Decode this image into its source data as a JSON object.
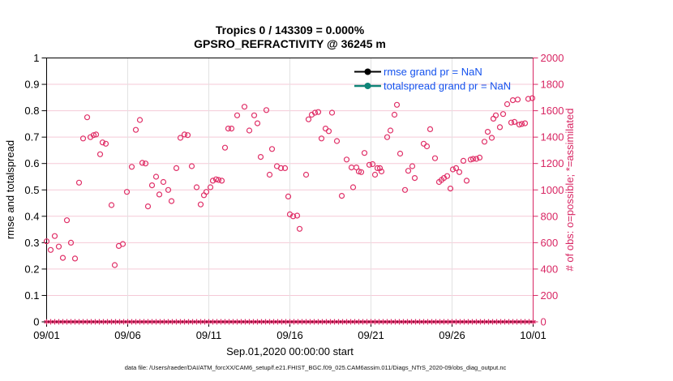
{
  "title": {
    "line1": "Tropics 0 / 143309 = 0.000%",
    "line2": "GPSRO_REFRACTIVITY @ 36245 m"
  },
  "axes": {
    "left": {
      "label": "rmse and totalspread",
      "ticks": [
        "0",
        "0.1",
        "0.2",
        "0.3",
        "0.4",
        "0.5",
        "0.6",
        "0.7",
        "0.8",
        "0.9",
        "1"
      ],
      "range": [
        0,
        1
      ]
    },
    "right": {
      "label": "# of obs: o=possible; *=assimilated",
      "ticks": [
        "0",
        "200",
        "400",
        "600",
        "800",
        "1000",
        "1200",
        "1400",
        "1600",
        "1800",
        "2000"
      ],
      "range": [
        0,
        2000
      ]
    },
    "x": {
      "label": "Sep.01,2020 00:00:00 start",
      "ticks": [
        "09/01",
        "09/06",
        "09/11",
        "09/16",
        "09/21",
        "09/26",
        "10/01"
      ],
      "range_days": [
        0,
        30
      ]
    }
  },
  "legend": [
    {
      "label": "rmse grand pr = NaN",
      "line_color": "#000000"
    },
    {
      "label": "totalspread grand pr = NaN",
      "line_color": "#108478"
    }
  ],
  "colors": {
    "pink": "#d82663",
    "scatter": "#e03068",
    "grid_h": "#f5c9d7",
    "grid_v": "#e2e2e2",
    "legend_text": "#1452ee",
    "teal": "#108478"
  },
  "footer": "data file: /Users/raeder/DAI/ATM_forcXX/CAM6_setup/f.e21.FHIST_BGC.f09_025.CAM6assim.011/Diags_NTrS_2020-09/obs_diag_output.nc",
  "chart_data": {
    "type": "scatter",
    "title": "Tropics 0 / 143309 = 0.000%",
    "subtitle": "GPSRO_REFRACTIVITY @ 36245 m",
    "xlabel": "Sep.01,2020 00:00:00 start",
    "ylabel_left": "rmse and totalspread",
    "ylabel_right": "# of obs: o=possible; *=assimilated",
    "ylim_left": [
      0,
      1
    ],
    "ylim_right": [
      0,
      2000
    ],
    "x_axis_days_from_sep1": [
      0,
      30
    ],
    "grid": true,
    "legend_entries": [
      "rmse grand pr = NaN",
      "totalspread grand pr = NaN"
    ],
    "series": [
      {
        "name": "possible_obs",
        "marker": "o",
        "axis": "right",
        "color": "#e03068",
        "points": [
          [
            0.0,
            610
          ],
          [
            0.25,
            545
          ],
          [
            0.5,
            650
          ],
          [
            0.75,
            570
          ],
          [
            1.0,
            485
          ],
          [
            1.25,
            770
          ],
          [
            1.5,
            600
          ],
          [
            1.75,
            480
          ],
          [
            2.0,
            1055
          ],
          [
            2.25,
            1390
          ],
          [
            2.5,
            1550
          ],
          [
            2.7,
            1400
          ],
          [
            2.9,
            1415
          ],
          [
            3.05,
            1420
          ],
          [
            3.3,
            1270
          ],
          [
            3.45,
            1360
          ],
          [
            3.65,
            1350
          ],
          [
            4.0,
            885
          ],
          [
            4.2,
            430
          ],
          [
            4.45,
            575
          ],
          [
            4.7,
            590
          ],
          [
            4.95,
            985
          ],
          [
            5.25,
            1175
          ],
          [
            5.5,
            1455
          ],
          [
            5.75,
            1530
          ],
          [
            5.9,
            1205
          ],
          [
            6.1,
            1200
          ],
          [
            6.25,
            875
          ],
          [
            6.5,
            1035
          ],
          [
            6.75,
            1100
          ],
          [
            6.95,
            965
          ],
          [
            7.2,
            1060
          ],
          [
            7.5,
            1000
          ],
          [
            7.7,
            915
          ],
          [
            8.0,
            1165
          ],
          [
            8.25,
            1395
          ],
          [
            8.5,
            1420
          ],
          [
            8.7,
            1415
          ],
          [
            8.95,
            1180
          ],
          [
            9.25,
            1020
          ],
          [
            9.5,
            890
          ],
          [
            9.7,
            960
          ],
          [
            9.85,
            985
          ],
          [
            10.1,
            1020
          ],
          [
            10.25,
            1070
          ],
          [
            10.45,
            1080
          ],
          [
            10.6,
            1075
          ],
          [
            10.8,
            1070
          ],
          [
            11.0,
            1320
          ],
          [
            11.2,
            1465
          ],
          [
            11.4,
            1465
          ],
          [
            11.75,
            1565
          ],
          [
            12.2,
            1630
          ],
          [
            12.5,
            1450
          ],
          [
            12.8,
            1565
          ],
          [
            13.0,
            1505
          ],
          [
            13.2,
            1250
          ],
          [
            13.55,
            1605
          ],
          [
            13.75,
            1115
          ],
          [
            13.9,
            1310
          ],
          [
            14.2,
            1180
          ],
          [
            14.45,
            1165
          ],
          [
            14.7,
            1165
          ],
          [
            14.9,
            950
          ],
          [
            15.0,
            815
          ],
          [
            15.2,
            800
          ],
          [
            15.45,
            805
          ],
          [
            15.6,
            705
          ],
          [
            16.0,
            1115
          ],
          [
            16.15,
            1535
          ],
          [
            16.35,
            1570
          ],
          [
            16.55,
            1585
          ],
          [
            16.75,
            1590
          ],
          [
            16.95,
            1390
          ],
          [
            17.2,
            1465
          ],
          [
            17.4,
            1445
          ],
          [
            17.6,
            1585
          ],
          [
            17.9,
            1370
          ],
          [
            18.2,
            955
          ],
          [
            18.5,
            1230
          ],
          [
            18.8,
            1170
          ],
          [
            18.9,
            1020
          ],
          [
            19.1,
            1170
          ],
          [
            19.25,
            1140
          ],
          [
            19.4,
            1135
          ],
          [
            19.6,
            1280
          ],
          [
            19.9,
            1190
          ],
          [
            20.1,
            1195
          ],
          [
            20.25,
            1115
          ],
          [
            20.4,
            1165
          ],
          [
            20.55,
            1165
          ],
          [
            20.65,
            1140
          ],
          [
            21.0,
            1400
          ],
          [
            21.2,
            1450
          ],
          [
            21.45,
            1570
          ],
          [
            21.6,
            1645
          ],
          [
            21.8,
            1275
          ],
          [
            22.1,
            1000
          ],
          [
            22.3,
            1145
          ],
          [
            22.55,
            1180
          ],
          [
            22.7,
            1090
          ],
          [
            23.25,
            1350
          ],
          [
            23.45,
            1330
          ],
          [
            23.65,
            1460
          ],
          [
            23.95,
            1240
          ],
          [
            24.2,
            1060
          ],
          [
            24.35,
            1075
          ],
          [
            24.5,
            1090
          ],
          [
            24.7,
            1105
          ],
          [
            24.9,
            1010
          ],
          [
            25.05,
            1155
          ],
          [
            25.25,
            1165
          ],
          [
            25.45,
            1135
          ],
          [
            25.7,
            1220
          ],
          [
            25.9,
            1070
          ],
          [
            26.15,
            1230
          ],
          [
            26.3,
            1235
          ],
          [
            26.5,
            1235
          ],
          [
            26.7,
            1245
          ],
          [
            27.0,
            1365
          ],
          [
            27.2,
            1440
          ],
          [
            27.45,
            1395
          ],
          [
            27.55,
            1540
          ],
          [
            27.7,
            1565
          ],
          [
            27.95,
            1475
          ],
          [
            28.15,
            1575
          ],
          [
            28.4,
            1650
          ],
          [
            28.65,
            1510
          ],
          [
            28.75,
            1680
          ],
          [
            28.85,
            1515
          ],
          [
            29.05,
            1685
          ],
          [
            29.15,
            1495
          ],
          [
            29.3,
            1500
          ],
          [
            29.5,
            1505
          ],
          [
            29.7,
            1690
          ],
          [
            29.95,
            1695
          ]
        ]
      },
      {
        "name": "assimilated_obs",
        "marker": "*",
        "axis": "right",
        "color": "#d82663",
        "constant_value": 0,
        "bin_spacing_days": 0.25,
        "note": "asterisks all at zero along x-axis"
      },
      {
        "name": "rmse",
        "legend": "rmse grand pr = NaN",
        "color": "#000000",
        "value": "NaN"
      },
      {
        "name": "totalspread",
        "legend": "totalspread grand pr = NaN",
        "color": "#108478",
        "value": "NaN"
      }
    ]
  }
}
